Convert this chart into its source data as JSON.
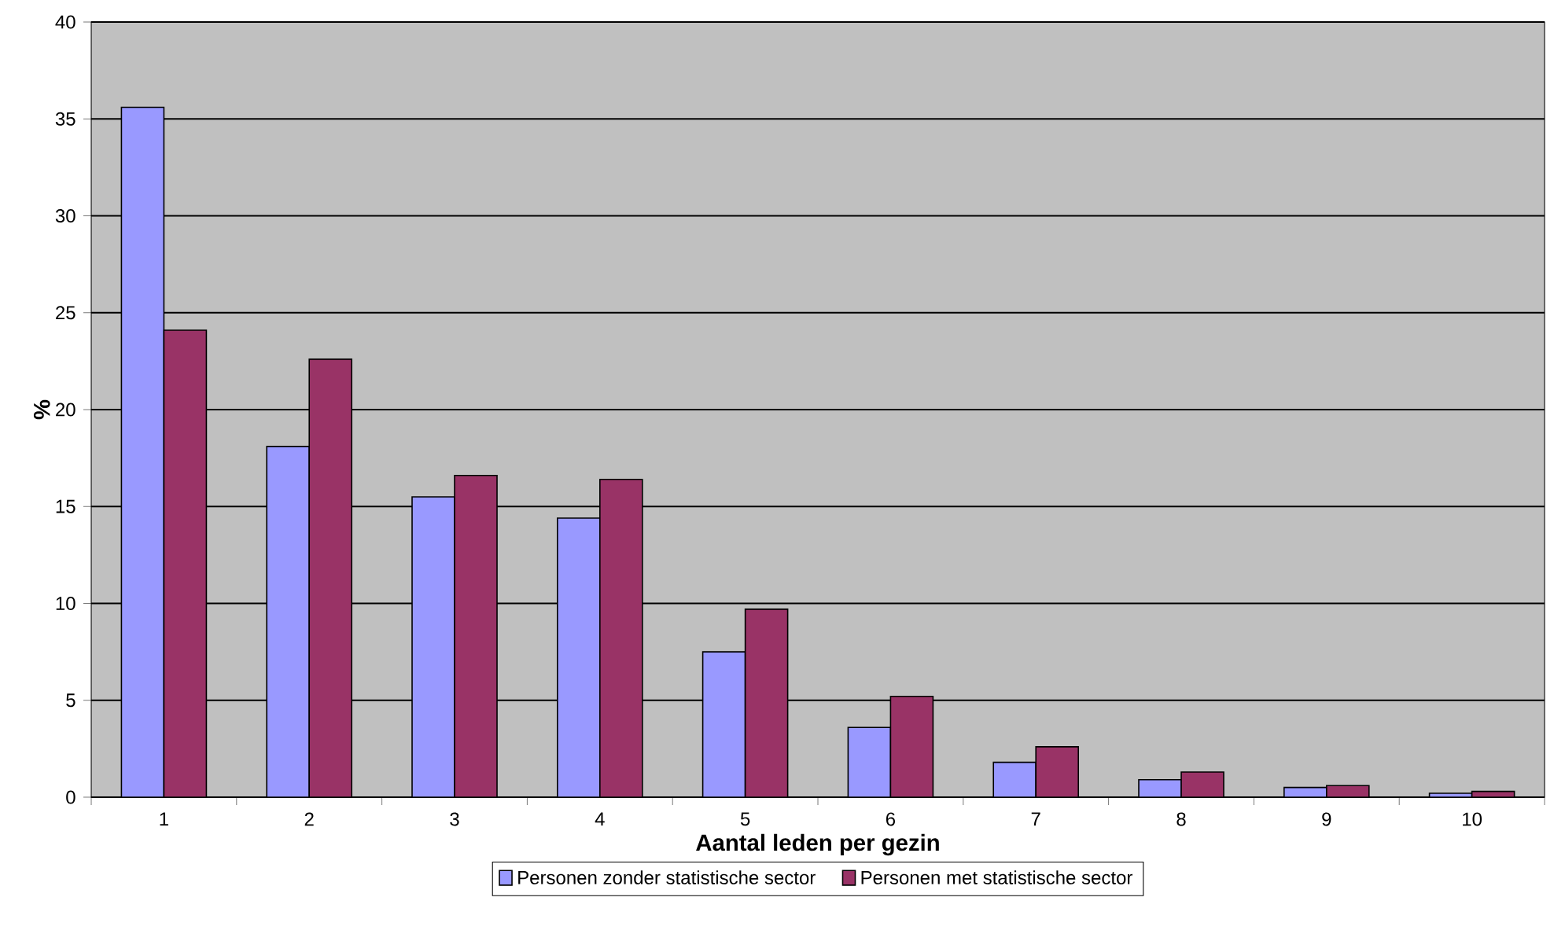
{
  "chart_data": {
    "type": "bar",
    "xlabel": "Aantal leden per gezin",
    "ylabel": "%",
    "categories": [
      "1",
      "2",
      "3",
      "4",
      "5",
      "6",
      "7",
      "8",
      "9",
      "10"
    ],
    "series": [
      {
        "name": "Personen zonder statistische sector",
        "color": "#9999ff",
        "values": [
          35.6,
          18.1,
          15.5,
          14.4,
          7.5,
          3.6,
          1.8,
          0.9,
          0.5,
          0.2
        ]
      },
      {
        "name": "Personen met statistische sector",
        "color": "#993366",
        "values": [
          24.1,
          22.6,
          16.6,
          16.4,
          9.7,
          5.2,
          2.6,
          1.3,
          0.6,
          0.3
        ]
      }
    ],
    "ylim": [
      0,
      40
    ],
    "yticks": [
      0,
      5,
      10,
      15,
      20,
      25,
      30,
      35,
      40
    ],
    "grid": "y",
    "legend": "bottom"
  }
}
